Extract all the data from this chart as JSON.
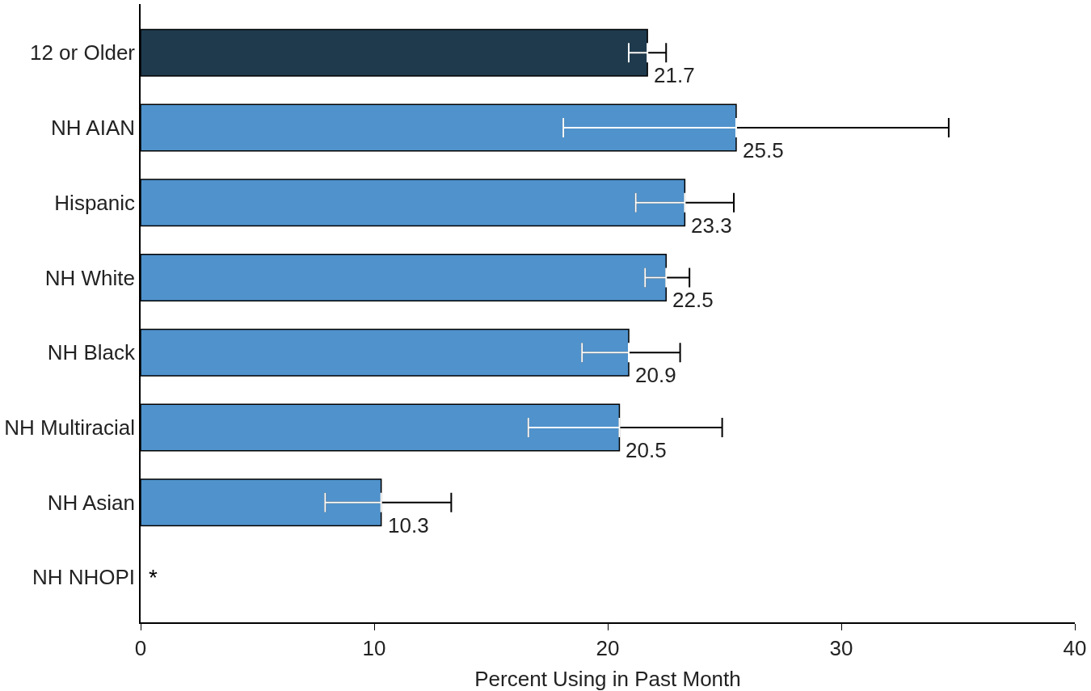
{
  "chart_data": {
    "type": "bar",
    "orientation": "horizontal",
    "xlabel": "Percent Using in Past Month",
    "categories": [
      "12 or Older",
      "NH AIAN",
      "Hispanic",
      "NH White",
      "NH Black",
      "NH Multiracial",
      "NH Asian",
      "NH NHOPI"
    ],
    "values": [
      21.7,
      25.5,
      23.3,
      22.5,
      20.9,
      20.5,
      10.3,
      null
    ],
    "colors": [
      "#1f3a4d",
      "#4f92cc",
      "#4f92cc",
      "#4f92cc",
      "#4f92cc",
      "#4f92cc",
      "#4f92cc",
      "#4f92cc"
    ],
    "errors": [
      [
        20.9,
        22.5
      ],
      [
        18.1,
        34.6
      ],
      [
        21.2,
        25.4
      ],
      [
        21.6,
        23.5
      ],
      [
        18.9,
        23.1
      ],
      [
        16.6,
        24.9
      ],
      [
        7.9,
        13.3
      ],
      null
    ],
    "value_labels": [
      "21.7",
      "25.5",
      "23.3",
      "22.5",
      "20.9",
      "20.5",
      "10.3",
      "*"
    ],
    "xlim": [
      0,
      40
    ],
    "xticks": [
      0,
      10,
      20,
      30,
      40
    ]
  }
}
